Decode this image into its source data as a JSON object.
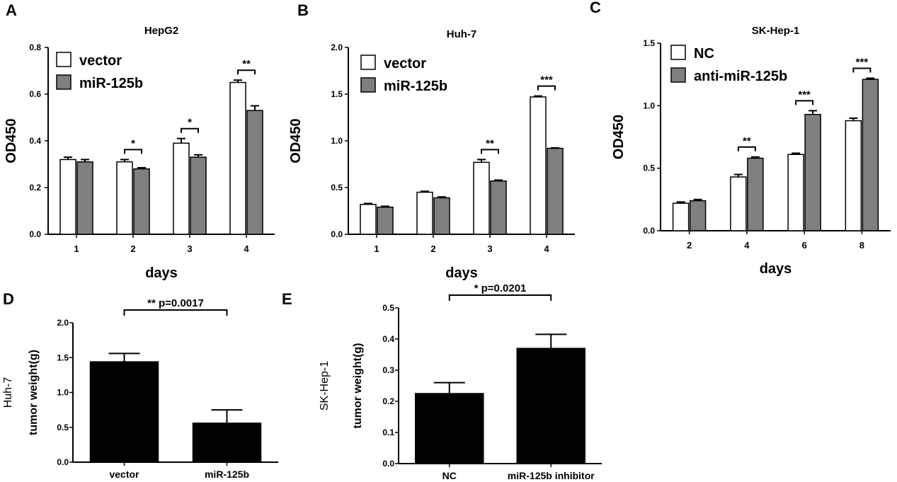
{
  "colors": {
    "bar_white": "#ffffff",
    "bar_gray": "#7f7f7f",
    "bar_black": "#000000",
    "axis": "#000000"
  },
  "chart_data": [
    {
      "panel": "A",
      "type": "bar",
      "title": "HepG2",
      "xlabel": "days",
      "ylabel": "OD450",
      "categories": [
        "1",
        "2",
        "3",
        "4"
      ],
      "ylim": [
        0,
        0.8
      ],
      "yticks": [
        "0.0",
        "0.2",
        "0.4",
        "0.6",
        "0.8"
      ],
      "legend_position": "top-left",
      "series": [
        {
          "name": "vector",
          "values": [
            0.32,
            0.31,
            0.39,
            0.65
          ],
          "errors": [
            0.01,
            0.01,
            0.02,
            0.01
          ],
          "fill": "#ffffff"
        },
        {
          "name": "miR-125b",
          "values": [
            0.31,
            0.28,
            0.33,
            0.53
          ],
          "errors": [
            0.01,
            0.005,
            0.01,
            0.02
          ],
          "fill": "#7f7f7f"
        }
      ],
      "significance": [
        {
          "category": "2",
          "label": "*"
        },
        {
          "category": "3",
          "label": "*"
        },
        {
          "category": "4",
          "label": "**"
        }
      ]
    },
    {
      "panel": "B",
      "type": "bar",
      "title": "Huh-7",
      "xlabel": "days",
      "ylabel": "OD450",
      "categories": [
        "1",
        "2",
        "3",
        "4"
      ],
      "ylim": [
        0,
        2.0
      ],
      "yticks": [
        "0.0",
        "0.5",
        "1.0",
        "1.5",
        "2.0"
      ],
      "legend_position": "top-left",
      "series": [
        {
          "name": "vector",
          "values": [
            0.32,
            0.45,
            0.77,
            1.47
          ],
          "errors": [
            0.01,
            0.01,
            0.03,
            0.01
          ],
          "fill": "#ffffff"
        },
        {
          "name": "miR-125b",
          "values": [
            0.29,
            0.39,
            0.57,
            0.92
          ],
          "errors": [
            0.01,
            0.01,
            0.01,
            0.005
          ],
          "fill": "#7f7f7f"
        }
      ],
      "significance": [
        {
          "category": "3",
          "label": "**"
        },
        {
          "category": "4",
          "label": "***"
        }
      ]
    },
    {
      "panel": "C",
      "type": "bar",
      "title": "SK-Hep-1",
      "xlabel": "days",
      "ylabel": "OD450",
      "categories": [
        "2",
        "4",
        "6",
        "8"
      ],
      "ylim": [
        0,
        1.5
      ],
      "yticks": [
        "0.0",
        "0.5",
        "1.0",
        "1.5"
      ],
      "legend_position": "top-left",
      "series": [
        {
          "name": "NC",
          "values": [
            0.22,
            0.43,
            0.61,
            0.88
          ],
          "errors": [
            0.01,
            0.02,
            0.01,
            0.02
          ],
          "fill": "#ffffff"
        },
        {
          "name": "anti-miR-125b",
          "values": [
            0.24,
            0.58,
            0.93,
            1.21
          ],
          "errors": [
            0.01,
            0.01,
            0.03,
            0.01
          ],
          "fill": "#7f7f7f"
        }
      ],
      "significance": [
        {
          "category": "4",
          "label": "**"
        },
        {
          "category": "6",
          "label": "***"
        },
        {
          "category": "8",
          "label": "***"
        }
      ]
    },
    {
      "panel": "D",
      "type": "bar",
      "title": "",
      "xlabel": "",
      "ylabel": "tumor weight(g)",
      "side_label": "Huh-7",
      "categories": [
        "vector",
        "miR-125b"
      ],
      "ylim": [
        0,
        2.0
      ],
      "yticks": [
        "0.0",
        "0.5",
        "1.0",
        "1.5",
        "2.0"
      ],
      "series": [
        {
          "name": "",
          "values": [
            1.44,
            0.56
          ],
          "errors": [
            0.12,
            0.19
          ],
          "fill": "#000000"
        }
      ],
      "significance": [
        {
          "span": [
            "vector",
            "miR-125b"
          ],
          "label": "** p=0.0017"
        }
      ]
    },
    {
      "panel": "E",
      "type": "bar",
      "title": "",
      "xlabel": "",
      "ylabel": "tumor weight(g)",
      "side_label": "SK-Hep-1",
      "categories": [
        "NC",
        "miR-125b inhibitor"
      ],
      "ylim": [
        0,
        0.5
      ],
      "yticks": [
        "0.0",
        "0.1",
        "0.2",
        "0.3",
        "0.4",
        "0.5"
      ],
      "series": [
        {
          "name": "",
          "values": [
            0.225,
            0.37
          ],
          "errors": [
            0.035,
            0.045
          ],
          "fill": "#000000"
        }
      ],
      "significance": [
        {
          "span": [
            "NC",
            "miR-125b inhibitor"
          ],
          "label": "* p=0.0201"
        }
      ]
    }
  ]
}
